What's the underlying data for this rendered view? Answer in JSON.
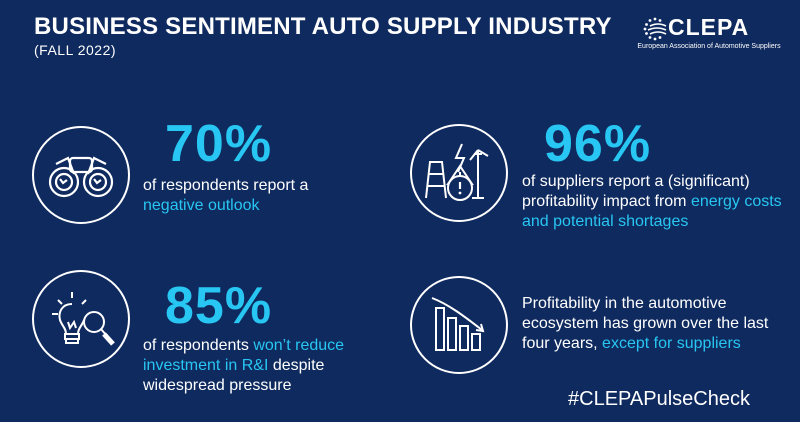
{
  "header": {
    "title": "BUSINESS SENTIMENT AUTO SUPPLY INDUSTRY",
    "subtitle": "(FALL 2022)"
  },
  "logo": {
    "name": "CLEPA",
    "tagline": "European Association of Automotive Suppliers"
  },
  "colors": {
    "background": "#0f2a5e",
    "accent": "#28c6f2",
    "text": "#ffffff"
  },
  "items": [
    {
      "icon": "binoculars-icon",
      "value": "70%",
      "text_before": "of respondents report a",
      "highlight": "negative outlook",
      "text_after": ""
    },
    {
      "icon": "energy-warning-icon",
      "value": "96%",
      "text_before": "of suppliers report a (significant) profitability impact from",
      "highlight": "energy costs and potential shortages",
      "text_after": ""
    },
    {
      "icon": "lightbulb-magnifier-icon",
      "value": "85%",
      "text_before": "of respondents",
      "highlight": "won’t reduce investment in R&I",
      "text_after": "despite widespread pressure"
    },
    {
      "icon": "declining-bar-chart-icon",
      "value": "",
      "text_before": "Profitability in the automotive ecosystem has grown over the last four years,",
      "highlight": "except for suppliers",
      "text_after": ""
    }
  ],
  "hashtag": "#CLEPAPulseCheck"
}
